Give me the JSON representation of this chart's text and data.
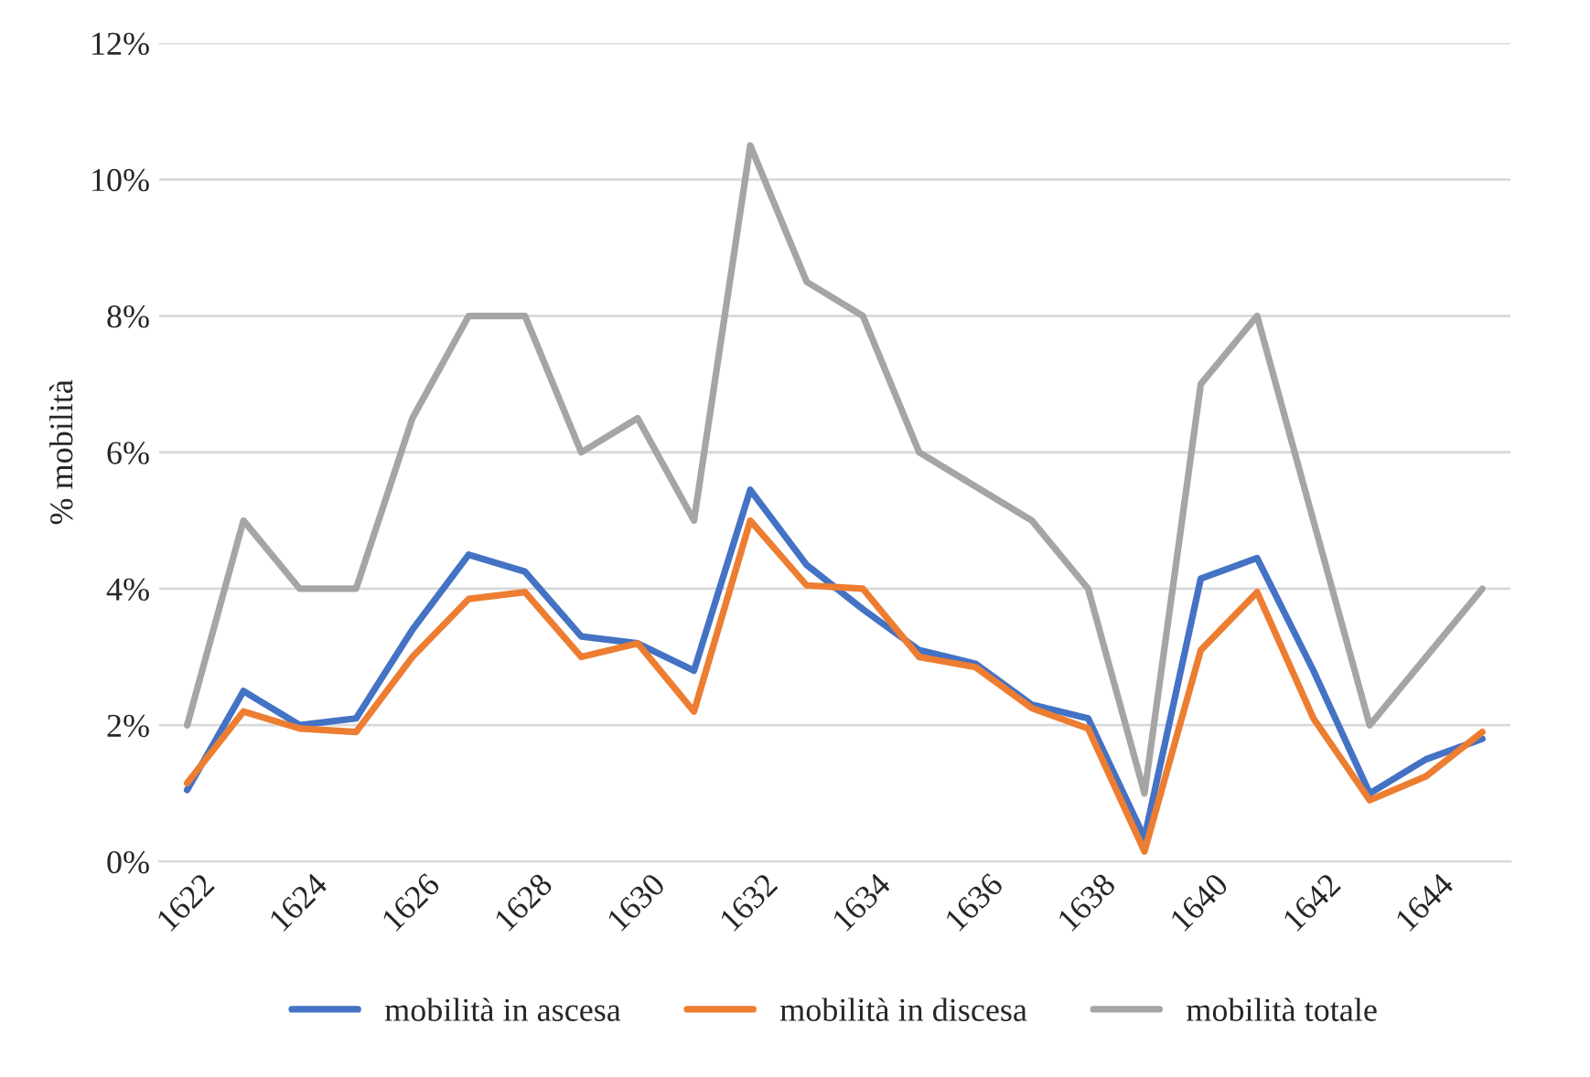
{
  "chart_data": {
    "type": "line",
    "ylabel": "% mobilità",
    "categories": [
      "1622",
      null,
      "1624",
      null,
      "1626",
      null,
      "1628",
      null,
      "1630",
      null,
      "1632",
      null,
      "1634",
      null,
      "1636",
      null,
      "1638",
      null,
      "1640",
      null,
      "1642",
      null,
      "1644",
      null
    ],
    "series": [
      {
        "name": "mobilità in ascesa",
        "color": "#4472c4",
        "values": [
          1.05,
          2.5,
          2.0,
          2.1,
          3.4,
          4.5,
          4.25,
          3.3,
          3.2,
          2.8,
          5.45,
          4.35,
          3.7,
          3.1,
          2.9,
          2.3,
          2.1,
          0.35,
          4.15,
          4.45,
          2.8,
          1.0,
          1.5,
          1.8
        ]
      },
      {
        "name": "mobilità in discesa",
        "color": "#ed7d31",
        "values": [
          1.15,
          2.2,
          1.95,
          1.9,
          3.0,
          3.85,
          3.95,
          3.0,
          3.2,
          2.2,
          5.0,
          4.05,
          4.0,
          3.0,
          2.85,
          2.25,
          1.95,
          0.15,
          3.1,
          3.95,
          2.1,
          0.9,
          1.25,
          1.9
        ]
      },
      {
        "name": "mobilità totale",
        "color": "#a5a5a5",
        "values": [
          2,
          5,
          4,
          4,
          6.5,
          8,
          8,
          6,
          6.5,
          5,
          10.5,
          8.5,
          8,
          6,
          5.5,
          5,
          4,
          1,
          7,
          8,
          5,
          2,
          3,
          4
        ]
      }
    ],
    "ylim": [
      0,
      12
    ],
    "yticks": [
      {
        "value": 0,
        "label": "0%"
      },
      {
        "value": 2,
        "label": "2%"
      },
      {
        "value": 4,
        "label": "4%"
      },
      {
        "value": 6,
        "label": "6%"
      },
      {
        "value": 8,
        "label": "8%"
      },
      {
        "value": 10,
        "label": "10%"
      },
      {
        "value": 12,
        "label": "12%"
      }
    ],
    "grid": "y",
    "legend": "bottom",
    "marker": "none",
    "line_style": "solid"
  }
}
